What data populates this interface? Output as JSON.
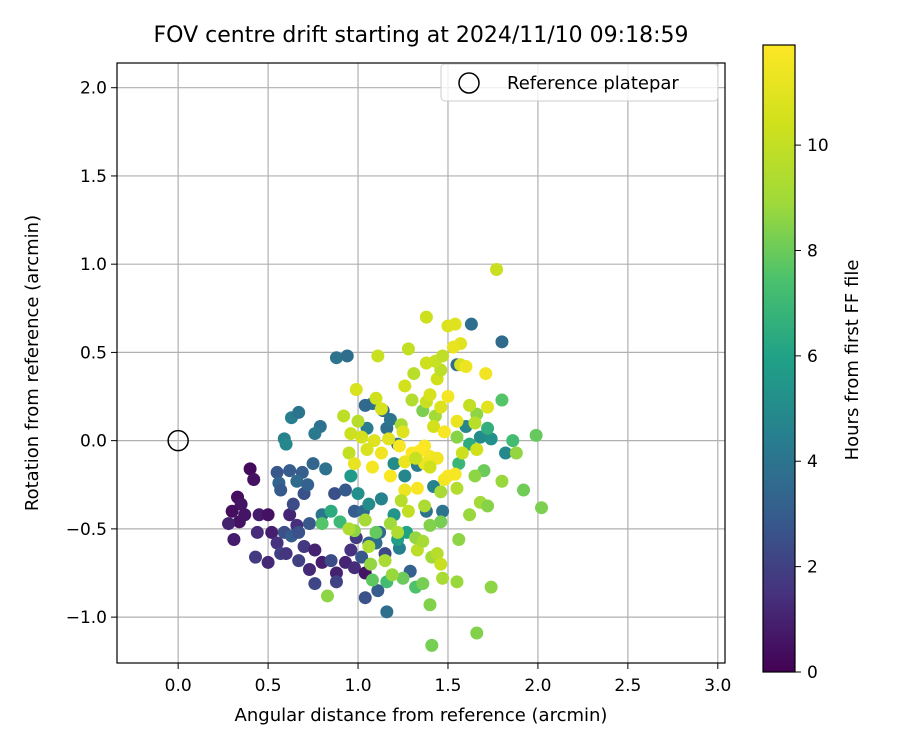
{
  "chart_data": {
    "type": "scatter",
    "title": "FOV centre drift starting at 2024/11/10 09:18:59",
    "xlabel": "Angular distance from reference (arcmin)",
    "ylabel": "Rotation from reference (arcmin)",
    "xlim": [
      -0.34,
      3.04
    ],
    "ylim": [
      -1.26,
      2.14
    ],
    "x_ticks": [
      "0.0",
      "0.5",
      "1.0",
      "1.5",
      "2.0",
      "2.5",
      "3.0"
    ],
    "y_ticks": [
      "−1.0",
      "−0.5",
      "0.0",
      "0.5",
      "1.0",
      "1.5",
      "2.0"
    ],
    "grid": true,
    "legend": {
      "position": "top-right",
      "entries": [
        "Reference platepar"
      ]
    },
    "reference_point": {
      "x": 0.0,
      "y": 0.0
    },
    "colorbar": {
      "label": "Hours from first FF file",
      "range": [
        0,
        11.9
      ],
      "ticks": [
        "0",
        "2",
        "4",
        "6",
        "8",
        "10"
      ],
      "colormap": "viridis"
    },
    "series": [
      {
        "colorby": "hours",
        "points": [
          [
            0.4,
            -0.16,
            0.3
          ],
          [
            0.33,
            -0.32,
            0.4
          ],
          [
            0.35,
            -0.36,
            0.6
          ],
          [
            0.42,
            -0.22,
            0.5
          ],
          [
            0.3,
            -0.4,
            0.4
          ],
          [
            0.34,
            -0.46,
            0.5
          ],
          [
            0.31,
            -0.56,
            0.8
          ],
          [
            0.28,
            -0.47,
            1.0
          ],
          [
            0.37,
            -0.42,
            0.6
          ],
          [
            0.45,
            -0.42,
            0.8
          ],
          [
            0.5,
            -0.42,
            0.5
          ],
          [
            0.44,
            -0.52,
            1.3
          ],
          [
            0.52,
            -0.52,
            0.9
          ],
          [
            0.55,
            -0.58,
            1.5
          ],
          [
            0.43,
            -0.66,
            1.8
          ],
          [
            0.5,
            -0.69,
            1.2
          ],
          [
            0.57,
            -0.64,
            2.0
          ],
          [
            0.6,
            -0.64,
            1.6
          ],
          [
            0.62,
            -0.42,
            1.1
          ],
          [
            0.66,
            -0.48,
            1.4
          ],
          [
            0.7,
            -0.6,
            1.7
          ],
          [
            0.76,
            -0.62,
            1.0
          ],
          [
            0.73,
            -0.73,
            1.2
          ],
          [
            0.8,
            -0.69,
            0.9
          ],
          [
            0.76,
            -0.81,
            2.2
          ],
          [
            0.88,
            -0.75,
            1.0
          ],
          [
            0.93,
            -0.69,
            1.1
          ],
          [
            0.96,
            -0.62,
            1.5
          ],
          [
            0.98,
            -0.72,
            1.3
          ],
          [
            1.04,
            -0.75,
            0.6
          ],
          [
            0.99,
            -0.55,
            1.8
          ],
          [
            0.85,
            -0.68,
            2.4
          ],
          [
            0.88,
            -0.8,
            2.1
          ],
          [
            0.67,
            -0.68,
            2.0
          ],
          [
            0.59,
            -0.52,
            2.5
          ],
          [
            0.63,
            -0.54,
            3.0
          ],
          [
            0.67,
            -0.52,
            2.6
          ],
          [
            0.73,
            -0.47,
            2.8
          ],
          [
            0.64,
            -0.36,
            2.4
          ],
          [
            0.7,
            -0.3,
            2.6
          ],
          [
            0.55,
            -0.18,
            2.8
          ],
          [
            0.62,
            -0.17,
            3.0
          ],
          [
            0.69,
            -0.18,
            3.1
          ],
          [
            0.56,
            -0.24,
            3.3
          ],
          [
            0.57,
            -0.28,
            2.9
          ],
          [
            0.66,
            -0.23,
            3.6
          ],
          [
            0.72,
            -0.25,
            3.2
          ],
          [
            0.75,
            -0.13,
            3.4
          ],
          [
            0.82,
            -0.16,
            3.9
          ],
          [
            0.8,
            -0.42,
            4.1
          ],
          [
            0.87,
            -0.3,
            2.5
          ],
          [
            0.93,
            -0.28,
            2.9
          ],
          [
            0.98,
            -0.4,
            3.0
          ],
          [
            1.03,
            -0.4,
            3.6
          ],
          [
            1.06,
            -0.58,
            3.3
          ],
          [
            1.1,
            -0.58,
            3.7
          ],
          [
            1.12,
            -0.52,
            3.5
          ],
          [
            1.15,
            -0.64,
            2.3
          ],
          [
            1.02,
            -0.66,
            2.8
          ],
          [
            1.04,
            -0.89,
            2.6
          ],
          [
            1.11,
            -0.85,
            3.0
          ],
          [
            1.16,
            -0.97,
            3.8
          ],
          [
            1.23,
            -0.61,
            4.5
          ],
          [
            1.29,
            -0.74,
            3.2
          ],
          [
            1.38,
            -0.4,
            3.9
          ],
          [
            1.47,
            -0.4,
            4.0
          ],
          [
            1.42,
            -0.26,
            4.6
          ],
          [
            1.33,
            -0.14,
            4.3
          ],
          [
            1.26,
            -0.2,
            4.8
          ],
          [
            1.2,
            -0.13,
            5.0
          ],
          [
            1.22,
            -0.02,
            4.2
          ],
          [
            1.16,
            0.07,
            3.8
          ],
          [
            1.05,
            0.07,
            4.4
          ],
          [
            1.08,
            0.21,
            4.0
          ],
          [
            1.14,
            0.17,
            3.6
          ],
          [
            1.18,
            0.12,
            4.1
          ],
          [
            1.04,
            0.2,
            3.5
          ],
          [
            0.88,
            0.47,
            4.0
          ],
          [
            0.94,
            0.48,
            3.7
          ],
          [
            0.79,
            0.08,
            3.9
          ],
          [
            0.76,
            0.04,
            4.2
          ],
          [
            0.63,
            0.13,
            4.4
          ],
          [
            0.67,
            0.16,
            4.0
          ],
          [
            0.59,
            0.01,
            4.6
          ],
          [
            0.6,
            -0.02,
            4.8
          ],
          [
            1.63,
            0.66,
            3.8
          ],
          [
            1.8,
            0.56,
            3.6
          ],
          [
            1.55,
            0.43,
            3.6
          ],
          [
            1.6,
            0.08,
            4.8
          ],
          [
            1.68,
            0.02,
            5.0
          ],
          [
            1.74,
            0.01,
            5.2
          ],
          [
            1.82,
            -0.07,
            4.9
          ],
          [
            0.96,
            -0.2,
            5.6
          ],
          [
            1.0,
            -0.3,
            5.2
          ],
          [
            1.06,
            -0.36,
            5.0
          ],
          [
            1.13,
            -0.33,
            4.6
          ],
          [
            1.2,
            -0.42,
            5.4
          ],
          [
            1.22,
            -0.56,
            5.8
          ],
          [
            1.27,
            -0.52,
            6.0
          ],
          [
            1.16,
            -0.8,
            7.2
          ],
          [
            1.08,
            -0.79,
            7.8
          ],
          [
            1.25,
            -0.78,
            8.0
          ],
          [
            1.32,
            -0.83,
            7.5
          ],
          [
            1.36,
            -0.81,
            8.2
          ],
          [
            1.4,
            -0.93,
            8.4
          ],
          [
            1.41,
            -1.16,
            8.2
          ],
          [
            1.66,
            -1.09,
            8.4
          ],
          [
            1.74,
            -0.83,
            8.6
          ],
          [
            1.55,
            -0.8,
            8.8
          ],
          [
            1.47,
            -0.78,
            9.2
          ],
          [
            0.83,
            -0.88,
            8.6
          ],
          [
            0.8,
            -0.47,
            7.6
          ],
          [
            0.85,
            -0.4,
            6.4
          ],
          [
            0.9,
            -0.46,
            7.0
          ],
          [
            0.98,
            -0.51,
            8.6
          ],
          [
            1.04,
            -0.45,
            9.1
          ],
          [
            1.1,
            -0.52,
            7.9
          ],
          [
            1.18,
            -0.47,
            8.9
          ],
          [
            1.32,
            -0.55,
            8.7
          ],
          [
            1.4,
            -0.48,
            8.4
          ],
          [
            1.46,
            -0.46,
            8.2
          ],
          [
            1.56,
            -0.56,
            8.6
          ],
          [
            1.62,
            -0.42,
            8.8
          ],
          [
            1.68,
            -0.35,
            9.0
          ],
          [
            1.72,
            -0.37,
            8.5
          ],
          [
            1.8,
            -0.23,
            8.8
          ],
          [
            1.92,
            -0.28,
            8.1
          ],
          [
            2.02,
            -0.38,
            8.3
          ],
          [
            1.7,
            -0.17,
            8.0
          ],
          [
            1.65,
            -0.2,
            8.6
          ],
          [
            1.56,
            -0.13,
            6.9
          ],
          [
            1.62,
            -0.02,
            6.4
          ],
          [
            1.72,
            0.07,
            6.6
          ],
          [
            1.8,
            0.23,
            7.6
          ],
          [
            1.86,
            0.0,
            7.2
          ],
          [
            1.99,
            0.03,
            7.9
          ],
          [
            1.88,
            -0.07,
            8.7
          ],
          [
            1.66,
            0.15,
            8.6
          ],
          [
            1.55,
            0.02,
            8.5
          ],
          [
            1.43,
            0.14,
            9.0
          ],
          [
            1.36,
            0.17,
            8.3
          ],
          [
            1.24,
            0.09,
            9.2
          ],
          [
            1.3,
            0.23,
            9.5
          ],
          [
            1.38,
            0.22,
            10.2
          ],
          [
            1.4,
            0.26,
            10.6
          ],
          [
            1.44,
            0.35,
            10.4
          ],
          [
            1.46,
            0.4,
            9.8
          ],
          [
            1.43,
            0.45,
            10.1
          ],
          [
            1.47,
            0.48,
            9.9
          ],
          [
            1.38,
            0.44,
            10.3
          ],
          [
            1.28,
            0.52,
            10.0
          ],
          [
            1.31,
            0.38,
            9.7
          ],
          [
            1.26,
            0.31,
            10.5
          ],
          [
            1.38,
            0.7,
            10.3
          ],
          [
            1.5,
            0.65,
            10.8
          ],
          [
            1.54,
            0.66,
            10.9
          ],
          [
            1.57,
            0.55,
            11.0
          ],
          [
            1.53,
            0.53,
            11.2
          ],
          [
            1.57,
            0.43,
            10.7
          ],
          [
            1.77,
            0.97,
            10.2
          ],
          [
            1.71,
            0.38,
            11.5
          ],
          [
            1.72,
            0.19,
            11.0
          ],
          [
            1.6,
            0.42,
            11.4
          ],
          [
            1.5,
            0.25,
            11.6
          ],
          [
            1.46,
            0.19,
            10.8
          ],
          [
            1.42,
            0.08,
            10.5
          ],
          [
            1.48,
            0.05,
            11.7
          ],
          [
            1.55,
            0.11,
            11.3
          ],
          [
            1.37,
            -0.03,
            11.8
          ],
          [
            1.34,
            -0.06,
            11.9
          ],
          [
            1.4,
            -0.09,
            11.6
          ],
          [
            1.44,
            -0.1,
            11.5
          ],
          [
            1.37,
            -0.13,
            11.4
          ],
          [
            1.3,
            -0.07,
            11.9
          ],
          [
            1.26,
            -0.12,
            11.3
          ],
          [
            1.23,
            -0.03,
            11.7
          ],
          [
            1.17,
            0.01,
            11.0
          ],
          [
            1.13,
            -0.07,
            11.5
          ],
          [
            1.09,
            0.0,
            10.9
          ],
          [
            1.05,
            -0.05,
            10.7
          ],
          [
            1.02,
            0.02,
            10.5
          ],
          [
            0.96,
            0.04,
            10.3
          ],
          [
            0.95,
            -0.07,
            10.0
          ],
          [
            0.98,
            -0.13,
            11.2
          ],
          [
            1.08,
            -0.15,
            11.6
          ],
          [
            1.18,
            -0.2,
            11.8
          ],
          [
            1.26,
            -0.28,
            11.4
          ],
          [
            1.33,
            -0.27,
            11.7
          ],
          [
            1.5,
            -0.2,
            11.9
          ],
          [
            1.54,
            -0.19,
            11.7
          ],
          [
            1.48,
            -0.22,
            11.6
          ],
          [
            1.4,
            -0.15,
            10.4
          ],
          [
            1.32,
            -0.1,
            10.1
          ],
          [
            1.25,
            0.05,
            10.9
          ],
          [
            1.1,
            0.24,
            10.4
          ],
          [
            1.13,
            0.18,
            10.6
          ],
          [
            0.99,
            0.29,
            10.7
          ],
          [
            0.92,
            0.14,
            9.8
          ],
          [
            1.0,
            0.11,
            9.6
          ],
          [
            1.11,
            0.48,
            10.2
          ],
          [
            1.58,
            -0.07,
            10.3
          ],
          [
            1.66,
            -0.05,
            10.4
          ],
          [
            1.62,
            0.2,
            10.0
          ],
          [
            1.65,
            0.1,
            9.7
          ],
          [
            1.55,
            -0.27,
            9.5
          ],
          [
            1.46,
            -0.29,
            9.2
          ],
          [
            1.37,
            -0.37,
            9.3
          ],
          [
            1.28,
            -0.4,
            10.0
          ],
          [
            1.24,
            -0.34,
            9.6
          ],
          [
            1.22,
            -0.52,
            9.4
          ],
          [
            1.33,
            -0.62,
            9.8
          ],
          [
            1.36,
            -0.57,
            9.1
          ],
          [
            1.41,
            -0.66,
            9.0
          ],
          [
            1.44,
            -0.64,
            9.6
          ],
          [
            1.46,
            -0.7,
            10.2
          ],
          [
            0.95,
            -0.5,
            9.4
          ],
          [
            1.06,
            -0.6,
            9.3
          ],
          [
            1.15,
            -0.68,
            9.2
          ],
          [
            1.19,
            -0.76,
            8.8
          ],
          [
            1.07,
            -0.7,
            8.7
          ]
        ]
      }
    ]
  }
}
